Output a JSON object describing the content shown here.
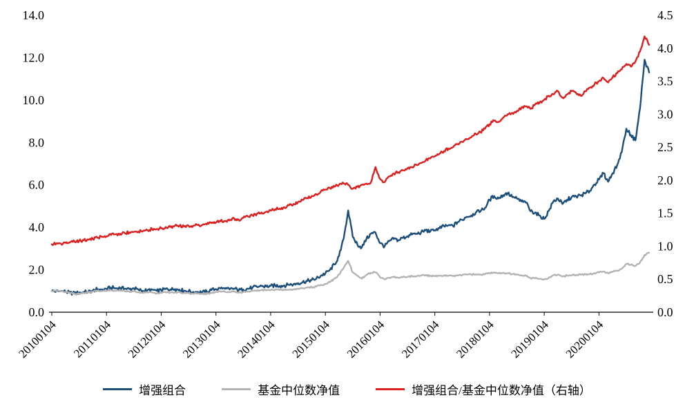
{
  "chart_data": {
    "type": "line",
    "title": "",
    "xlabel": "",
    "ylabel": "",
    "grid": false,
    "legend_position": "bottom",
    "left_axis": {
      "min": 0,
      "max": 14,
      "tick_values": [
        0,
        2,
        4,
        6,
        8,
        10,
        12,
        14
      ],
      "tick_labels": [
        "0.0",
        "2.0",
        "4.0",
        "6.0",
        "8.0",
        "10.0",
        "12.0",
        "14.0"
      ]
    },
    "right_axis": {
      "min": 0,
      "max": 4.5,
      "tick_values": [
        0,
        0.5,
        1.0,
        1.5,
        2.0,
        2.5,
        3.0,
        3.5,
        4.0,
        4.5
      ],
      "tick_labels": [
        "0.0",
        "0.5",
        "1.0",
        "1.5",
        "2.0",
        "2.5",
        "3.0",
        "3.5",
        "4.0",
        "4.5"
      ]
    },
    "x_ticks": [
      {
        "index": 0,
        "label": "20100104"
      },
      {
        "index": 12,
        "label": "20110104"
      },
      {
        "index": 24,
        "label": "20120104"
      },
      {
        "index": 36,
        "label": "20130104"
      },
      {
        "index": 48,
        "label": "20140104"
      },
      {
        "index": 60,
        "label": "20150104"
      },
      {
        "index": 72,
        "label": "20160104"
      },
      {
        "index": 84,
        "label": "20170104"
      },
      {
        "index": 96,
        "label": "20180104"
      },
      {
        "index": 108,
        "label": "20190104"
      },
      {
        "index": 120,
        "label": "20200104"
      }
    ],
    "x_unit": "monthly points from 20100104 to 20201231",
    "series": [
      {
        "name": "增强组合",
        "axis": "left",
        "color": "#1b4e79",
        "noise": 0.09,
        "values": [
          1.0,
          0.99,
          0.99,
          0.97,
          0.91,
          0.89,
          0.92,
          0.94,
          0.96,
          1.02,
          1.08,
          1.08,
          1.1,
          1.16,
          1.13,
          1.14,
          1.11,
          1.09,
          1.12,
          1.06,
          1.01,
          1.04,
          1.06,
          1.01,
          1.03,
          1.09,
          1.07,
          1.09,
          1.06,
          1.01,
          0.99,
          0.96,
          0.96,
          0.94,
          0.97,
          1.04,
          1.09,
          1.12,
          1.1,
          1.07,
          1.12,
          1.03,
          1.07,
          1.11,
          1.16,
          1.19,
          1.23,
          1.21,
          1.24,
          1.26,
          1.24,
          1.26,
          1.29,
          1.32,
          1.37,
          1.42,
          1.47,
          1.52,
          1.58,
          1.72,
          1.83,
          2.0,
          2.25,
          2.65,
          3.45,
          4.8,
          3.55,
          3.2,
          3.05,
          3.45,
          3.7,
          3.75,
          3.25,
          3.1,
          3.35,
          3.45,
          3.4,
          3.5,
          3.58,
          3.66,
          3.7,
          3.76,
          3.86,
          3.8,
          3.86,
          3.96,
          4.05,
          4.1,
          4.06,
          4.25,
          4.36,
          4.5,
          4.56,
          4.7,
          4.76,
          4.92,
          5.3,
          5.48,
          5.36,
          5.52,
          5.62,
          5.42,
          5.36,
          5.22,
          5.16,
          4.76,
          4.7,
          4.56,
          4.4,
          4.78,
          5.22,
          5.36,
          5.1,
          5.3,
          5.42,
          5.46,
          5.5,
          5.6,
          5.72,
          6.02,
          6.25,
          6.55,
          6.15,
          6.55,
          6.95,
          7.55,
          8.65,
          8.35,
          8.1,
          9.6,
          11.9,
          11.3
        ]
      },
      {
        "name": "基金中位数净值",
        "axis": "left",
        "color": "#b3b3b3",
        "noise": 0.035,
        "values": [
          1.0,
          0.99,
          0.98,
          0.96,
          0.89,
          0.86,
          0.88,
          0.91,
          0.93,
          0.97,
          1.01,
          1.0,
          1.0,
          1.03,
          1.01,
          1.02,
          0.99,
          0.97,
          0.99,
          0.95,
          0.91,
          0.93,
          0.93,
          0.89,
          0.91,
          0.94,
          0.93,
          0.94,
          0.93,
          0.9,
          0.89,
          0.87,
          0.88,
          0.86,
          0.87,
          0.91,
          0.96,
          0.97,
          0.96,
          0.95,
          0.99,
          0.93,
          0.95,
          0.98,
          1.01,
          1.01,
          1.04,
          1.03,
          1.04,
          1.06,
          1.05,
          1.05,
          1.06,
          1.08,
          1.11,
          1.13,
          1.16,
          1.18,
          1.21,
          1.29,
          1.33,
          1.42,
          1.58,
          1.78,
          2.08,
          2.42,
          1.88,
          1.72,
          1.58,
          1.76,
          1.86,
          1.88,
          1.65,
          1.55,
          1.63,
          1.66,
          1.62,
          1.65,
          1.67,
          1.7,
          1.7,
          1.72,
          1.75,
          1.72,
          1.7,
          1.72,
          1.73,
          1.72,
          1.7,
          1.73,
          1.75,
          1.77,
          1.77,
          1.79,
          1.77,
          1.79,
          1.84,
          1.87,
          1.84,
          1.85,
          1.84,
          1.79,
          1.77,
          1.73,
          1.71,
          1.61,
          1.6,
          1.57,
          1.54,
          1.62,
          1.74,
          1.77,
          1.68,
          1.73,
          1.75,
          1.76,
          1.76,
          1.78,
          1.79,
          1.84,
          1.87,
          1.92,
          1.84,
          1.9,
          1.96,
          2.05,
          2.28,
          2.24,
          2.18,
          2.35,
          2.7,
          2.8
        ]
      },
      {
        "name": "增强组合/基金中位数净值（右轴）",
        "axis": "right",
        "color": "#dd1e1e",
        "noise": 0.022,
        "values": [
          1.03,
          1.04,
          1.04,
          1.05,
          1.06,
          1.07,
          1.08,
          1.09,
          1.1,
          1.11,
          1.13,
          1.14,
          1.15,
          1.17,
          1.18,
          1.19,
          1.2,
          1.21,
          1.22,
          1.22,
          1.23,
          1.24,
          1.26,
          1.26,
          1.27,
          1.29,
          1.29,
          1.31,
          1.31,
          1.3,
          1.31,
          1.31,
          1.32,
          1.32,
          1.33,
          1.35,
          1.36,
          1.38,
          1.38,
          1.39,
          1.42,
          1.4,
          1.43,
          1.45,
          1.47,
          1.49,
          1.51,
          1.52,
          1.54,
          1.56,
          1.57,
          1.59,
          1.62,
          1.64,
          1.67,
          1.7,
          1.73,
          1.76,
          1.79,
          1.83,
          1.86,
          1.88,
          1.9,
          1.93,
          1.95,
          1.93,
          1.87,
          1.9,
          1.93,
          1.95,
          1.97,
          2.2,
          2.02,
          1.97,
          2.06,
          2.1,
          2.12,
          2.15,
          2.18,
          2.2,
          2.23,
          2.26,
          2.3,
          2.33,
          2.36,
          2.4,
          2.44,
          2.48,
          2.5,
          2.55,
          2.58,
          2.62,
          2.65,
          2.7,
          2.73,
          2.78,
          2.85,
          2.9,
          2.88,
          2.95,
          3.0,
          3.02,
          3.05,
          3.1,
          3.12,
          3.08,
          3.15,
          3.18,
          3.22,
          3.28,
          3.3,
          3.35,
          3.25,
          3.3,
          3.35,
          3.32,
          3.28,
          3.35,
          3.4,
          3.45,
          3.5,
          3.55,
          3.48,
          3.56,
          3.62,
          3.68,
          3.76,
          3.72,
          3.8,
          3.95,
          4.18,
          4.05
        ]
      }
    ]
  }
}
